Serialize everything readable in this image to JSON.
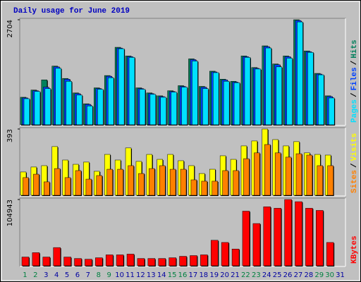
{
  "chart_data": {
    "type": "bar",
    "title": "Daily usage for June 2019",
    "legend_separator": "/",
    "categories": [
      "1",
      "2",
      "3",
      "4",
      "5",
      "6",
      "7",
      "8",
      "9",
      "10",
      "11",
      "12",
      "13",
      "14",
      "15",
      "16",
      "17",
      "18",
      "19",
      "20",
      "21",
      "22",
      "23",
      "24",
      "25",
      "26",
      "27",
      "28",
      "29",
      "30",
      "31"
    ],
    "category_colors": [
      "#008040",
      "#008040",
      "#0000a0",
      "#0000a0",
      "#0000a0",
      "#0000a0",
      "#0000a0",
      "#008040",
      "#008040",
      "#0000a0",
      "#0000a0",
      "#0000a0",
      "#0000a0",
      "#0000a0",
      "#008040",
      "#008040",
      "#0000a0",
      "#0000a0",
      "#0000a0",
      "#0000a0",
      "#0000a0",
      "#008040",
      "#008040",
      "#0000a0",
      "#0000a0",
      "#0000a0",
      "#0000a0",
      "#0000a0",
      "#008040",
      "#008040",
      "#0000a0"
    ],
    "panels": [
      {
        "ylim": [
          0,
          2704
        ],
        "yticks": [
          2704
        ],
        "series": [
          {
            "name": "Hits",
            "color": "#00805c",
            "values": [
              722,
              907,
              1167,
              1519,
              1204,
              833,
              556,
              963,
              1278,
              2000,
              1778,
              963,
              833,
              759,
              889,
              1019,
              1704,
              1000,
              1389,
              1185,
              1130,
              1778,
              1482,
              2037,
              1574,
              1778,
              2704,
              1907,
              1333,
              759,
              null
            ]
          },
          {
            "name": "Files",
            "color": "#0040ff",
            "values": [
              705,
              890,
              980,
              1500,
              1185,
              815,
              540,
              945,
              1260,
              1980,
              1760,
              945,
              815,
              740,
              870,
              1000,
              1685,
              980,
              1370,
              1165,
              1110,
              1760,
              1463,
              2018,
              1555,
              1760,
              2685,
              1888,
              1315,
              740,
              null
            ]
          },
          {
            "name": "Pages",
            "color": "#00e0ff",
            "values": [
              685,
              870,
              944,
              1463,
              1130,
              778,
              500,
              926,
              1222,
              1963,
              1741,
              926,
              796,
              722,
              852,
              981,
              1648,
              944,
              1352,
              1130,
              1093,
              1741,
              1444,
              1982,
              1500,
              1722,
              2648,
              1870,
              1296,
              704,
              null
            ]
          }
        ]
      },
      {
        "ylim": [
          0,
          393
        ],
        "yticks": [
          393
        ],
        "series": [
          {
            "name": "Visits",
            "color": "#ffff00",
            "values": [
              141,
              170,
              178,
              290,
              211,
              186,
              199,
              145,
              244,
              211,
              282,
              203,
              244,
              215,
              244,
              207,
              178,
              132,
              157,
              236,
              215,
              294,
              323,
              393,
              331,
              294,
              319,
              253,
              244,
              240,
              null
            ]
          },
          {
            "name": "Sites",
            "color": "#ff8000",
            "values": [
              108,
              128,
              83,
              161,
              108,
              149,
              99,
              120,
              157,
              157,
              178,
              132,
              161,
              178,
              157,
              157,
              95,
              87,
              87,
              149,
              149,
              219,
              253,
              302,
              253,
              228,
              248,
              240,
              178,
              178,
              null
            ]
          }
        ]
      },
      {
        "ylim": [
          0,
          104943
        ],
        "yticks": [
          104943
        ],
        "series": [
          {
            "name": "KBytes",
            "color": "#ff0000",
            "values": [
              14833,
              21679,
              14833,
              29666,
              14833,
              12551,
              11410,
              13692,
              18256,
              18256,
              19397,
              12551,
              12551,
              12551,
              13692,
              15974,
              17115,
              18256,
              41076,
              37653,
              27384,
              86716,
              67319,
              93562,
              91280,
              104943,
              101549,
              91280,
              87857,
              37653,
              null
            ]
          }
        ]
      }
    ]
  }
}
